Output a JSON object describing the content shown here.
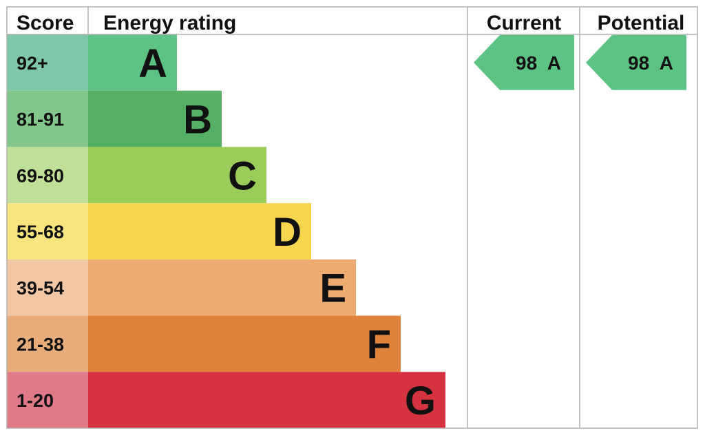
{
  "headers": {
    "score": "Score",
    "rating": "Energy rating",
    "current": "Current",
    "potential": "Potential"
  },
  "chart_data": {
    "type": "bar",
    "categories": [
      "A",
      "B",
      "C",
      "D",
      "E",
      "F",
      "G"
    ],
    "score_ranges": [
      "92+",
      "81-91",
      "69-80",
      "55-68",
      "39-54",
      "21-38",
      "1-20"
    ],
    "bands": [
      {
        "letter": "A",
        "range": "92+",
        "color": "#5cc384",
        "score_color": "#7ec7a8"
      },
      {
        "letter": "B",
        "range": "81-91",
        "color": "#55af64",
        "score_color": "#83c68c"
      },
      {
        "letter": "C",
        "range": "69-80",
        "color": "#9bcb59",
        "score_color": "#c0e09a"
      },
      {
        "letter": "D",
        "range": "55-68",
        "color": "#f5d64e",
        "score_color": "#f9e57e"
      },
      {
        "letter": "E",
        "range": "39-54",
        "color": "#efac70",
        "score_color": "#f2c7a6"
      },
      {
        "letter": "F",
        "range": "21-38",
        "color": "#df833a",
        "score_color": "#e9ad7b"
      },
      {
        "letter": "G",
        "range": "1-20",
        "color": "#d63341",
        "score_color": "#e07a88"
      }
    ],
    "current": {
      "score": 98,
      "band": "A",
      "label": "98  A",
      "color": "#5cc384"
    },
    "potential": {
      "score": 98,
      "band": "A",
      "label": "98  A",
      "color": "#5cc384"
    }
  }
}
